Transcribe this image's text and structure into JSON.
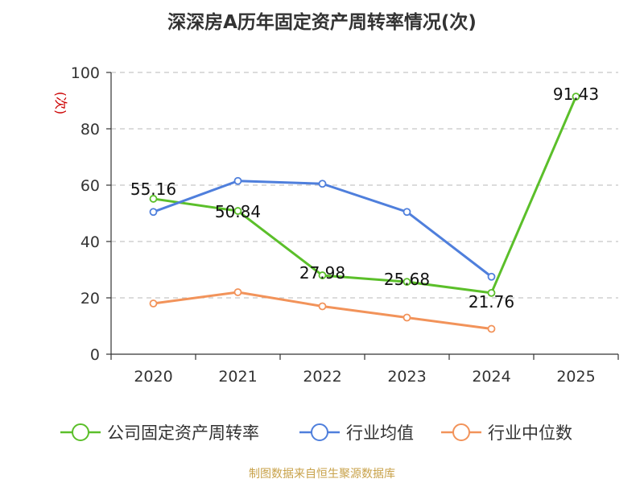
{
  "chart_data": {
    "type": "line",
    "title": "深深房A历年固定资产周转率情况(次)",
    "ylabel": "(次)",
    "xlabel": "",
    "categories": [
      "2020",
      "2021",
      "2022",
      "2023",
      "2024",
      "2025"
    ],
    "ylim": [
      0,
      100
    ],
    "yticks": [
      0,
      20,
      40,
      60,
      80,
      100
    ],
    "grid": true,
    "legend_position": "bottom",
    "series": [
      {
        "name": "公司固定资产周转率",
        "color": "#5bbf2a",
        "values": [
          55.16,
          50.84,
          27.98,
          25.68,
          21.76,
          91.43
        ],
        "labels": [
          "55.16",
          "50.84",
          "27.98",
          "25.68",
          "21.76",
          "91.43"
        ]
      },
      {
        "name": "行业均值",
        "color": "#4f7fdc",
        "values": [
          50.5,
          61.5,
          60.5,
          50.5,
          27.5,
          null
        ]
      },
      {
        "name": "行业中位数",
        "color": "#f2935a",
        "values": [
          18.0,
          22.0,
          17.0,
          13.0,
          9.0,
          null
        ]
      }
    ]
  },
  "source": "制图数据来自恒生聚源数据库"
}
